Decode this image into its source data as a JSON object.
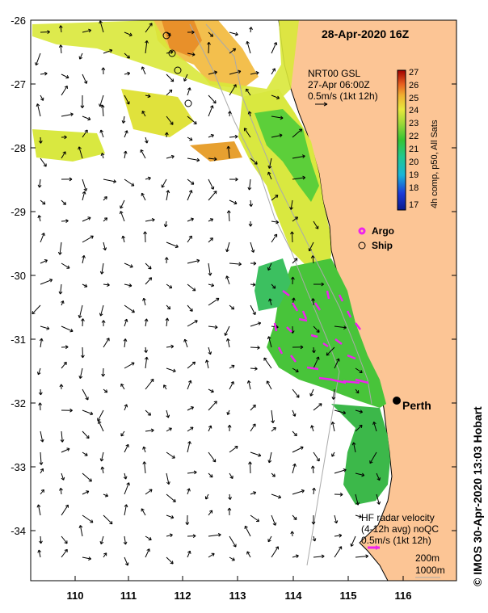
{
  "title": "28-Apr-2020 16Z",
  "lat_ticks": [
    "-26",
    "-27",
    "-28",
    "-29",
    "-30",
    "-31",
    "-32",
    "-33",
    "-34"
  ],
  "lon_ticks": [
    "110",
    "111",
    "112",
    "113",
    "114",
    "115",
    "116"
  ],
  "sst_legend": {
    "caption": "4h comp, p50, All Sats",
    "values": [
      "27",
      "26",
      "25",
      "24",
      "23",
      "22",
      "21",
      "20",
      "19",
      "18",
      "17"
    ]
  },
  "model_vector_key": {
    "line1": "NRT00 GSL",
    "line2": "27-Apr 06:00Z",
    "line3": "0.5m/s (1kt 12h)"
  },
  "markers": {
    "argo_label": "Argo",
    "ship_label": "Ship",
    "city_label": "Perth"
  },
  "hf_radar_key": {
    "line1": "HF radar velocity",
    "line2": "(4-12h avg) noQC",
    "line3": "0.5m/s (1kt 12h)"
  },
  "isobaths": {
    "shallow": "200m",
    "deep": "1000m"
  },
  "credit": "© IMOS 30-Apr-2020 13:03 Hobart",
  "colors": {
    "land": "#fcc595",
    "argo": "#ee22ee",
    "hf_vector": "#ee22ee",
    "sst_cold": "#0a1a8c",
    "sst_warm": "#a00000"
  }
}
